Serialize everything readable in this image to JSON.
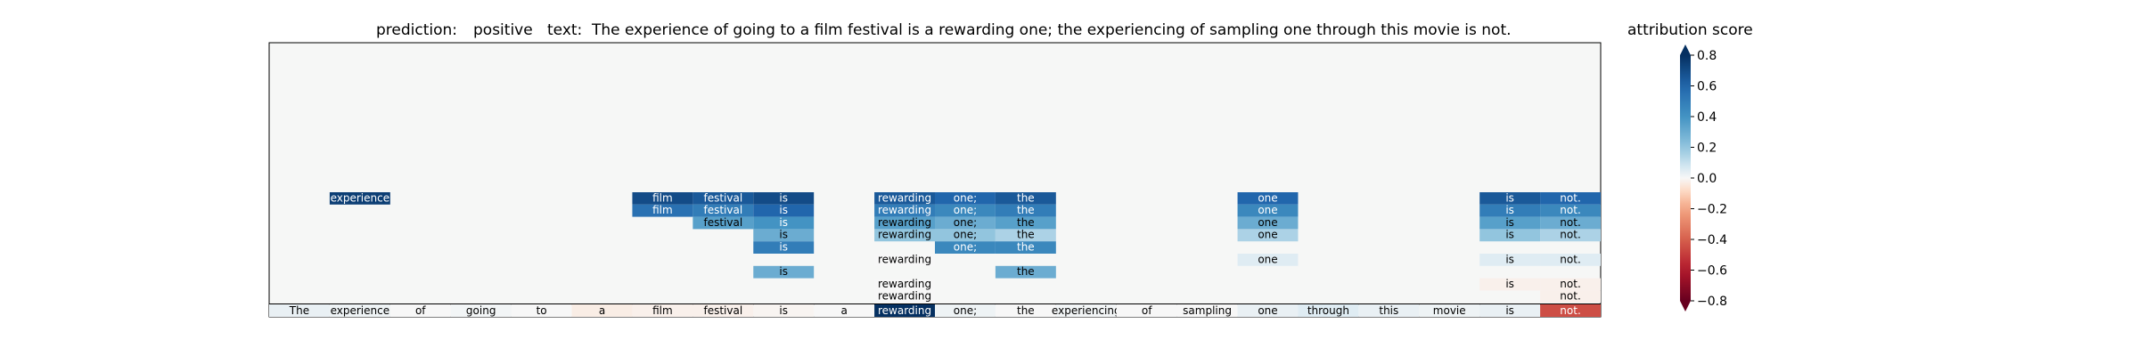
{
  "chart_data": {
    "type": "heatmap",
    "title": {
      "prediction_label": "prediction:",
      "prediction": "positive",
      "text_label": "text:",
      "text": "The experience of going to a film festival is a rewarding one; the experiencing of sampling one through this movie is not."
    },
    "tokens": [
      "The",
      "experience",
      "of",
      "going",
      "to",
      "a",
      "film",
      "festival",
      "is",
      "a",
      "rewarding",
      "one;",
      "the",
      "experiencing",
      "of",
      "sampling",
      "one",
      "through",
      "this",
      "movie",
      "is",
      "not."
    ],
    "token_scores": [
      0.03,
      0.02,
      0.0,
      0.01,
      0.0,
      -0.03,
      -0.02,
      -0.02,
      -0.01,
      0.0,
      0.8,
      0.02,
      0.0,
      0.01,
      0.0,
      0.0,
      0.03,
      0.05,
      0.03,
      0.02,
      0.03,
      -0.45
    ],
    "attention_grid": [
      {
        "col": 1,
        "rows": [
          [
            0,
            0.75
          ]
        ]
      },
      {
        "col": 6,
        "rows": [
          [
            0,
            0.7
          ],
          [
            1,
            0.55
          ]
        ]
      },
      {
        "col": 7,
        "rows": [
          [
            0,
            0.65
          ],
          [
            1,
            0.5
          ],
          [
            2,
            0.35
          ]
        ]
      },
      {
        "col": 8,
        "rows": [
          [
            0,
            0.7
          ],
          [
            1,
            0.6
          ],
          [
            2,
            0.4
          ],
          [
            3,
            0.3
          ],
          [
            4,
            0.5
          ],
          [
            6,
            0.3
          ]
        ]
      },
      {
        "col": 10,
        "rows": [
          [
            0,
            0.65
          ],
          [
            1,
            0.5
          ],
          [
            2,
            0.35
          ],
          [
            3,
            0.2
          ],
          [
            5,
            0.0
          ],
          [
            7,
            0.0
          ],
          [
            8,
            0.0
          ]
        ]
      },
      {
        "col": 11,
        "rows": [
          [
            0,
            0.6
          ],
          [
            1,
            0.45
          ],
          [
            2,
            0.3
          ],
          [
            3,
            0.2
          ],
          [
            4,
            0.45
          ]
        ]
      },
      {
        "col": 12,
        "rows": [
          [
            0,
            0.65
          ],
          [
            1,
            0.5
          ],
          [
            2,
            0.35
          ],
          [
            3,
            0.15
          ],
          [
            4,
            0.45
          ],
          [
            6,
            0.3
          ]
        ]
      },
      {
        "col": 16,
        "rows": [
          [
            0,
            0.6
          ],
          [
            1,
            0.45
          ],
          [
            2,
            0.3
          ],
          [
            3,
            0.15
          ],
          [
            5,
            0.05
          ]
        ]
      },
      {
        "col": 20,
        "rows": [
          [
            0,
            0.65
          ],
          [
            1,
            0.5
          ],
          [
            2,
            0.35
          ],
          [
            3,
            0.2
          ],
          [
            5,
            0.05
          ],
          [
            7,
            -0.02
          ]
        ]
      },
      {
        "col": 21,
        "rows": [
          [
            0,
            0.6
          ],
          [
            1,
            0.45
          ],
          [
            2,
            0.3
          ],
          [
            3,
            0.15
          ],
          [
            5,
            0.05
          ],
          [
            7,
            -0.02
          ],
          [
            8,
            -0.02
          ]
        ]
      }
    ],
    "colorbar": {
      "label": "attribution score",
      "range": [
        -0.8,
        0.8
      ],
      "ticks": [
        "0.8",
        "0.6",
        "0.4",
        "0.2",
        "0.0",
        "−0.2",
        "−0.4",
        "−0.6",
        "−0.8"
      ],
      "tick_values": [
        0.8,
        0.6,
        0.4,
        0.2,
        0.0,
        -0.2,
        -0.4,
        -0.6,
        -0.8
      ],
      "colormap": "RdBu",
      "extend": "both"
    }
  }
}
